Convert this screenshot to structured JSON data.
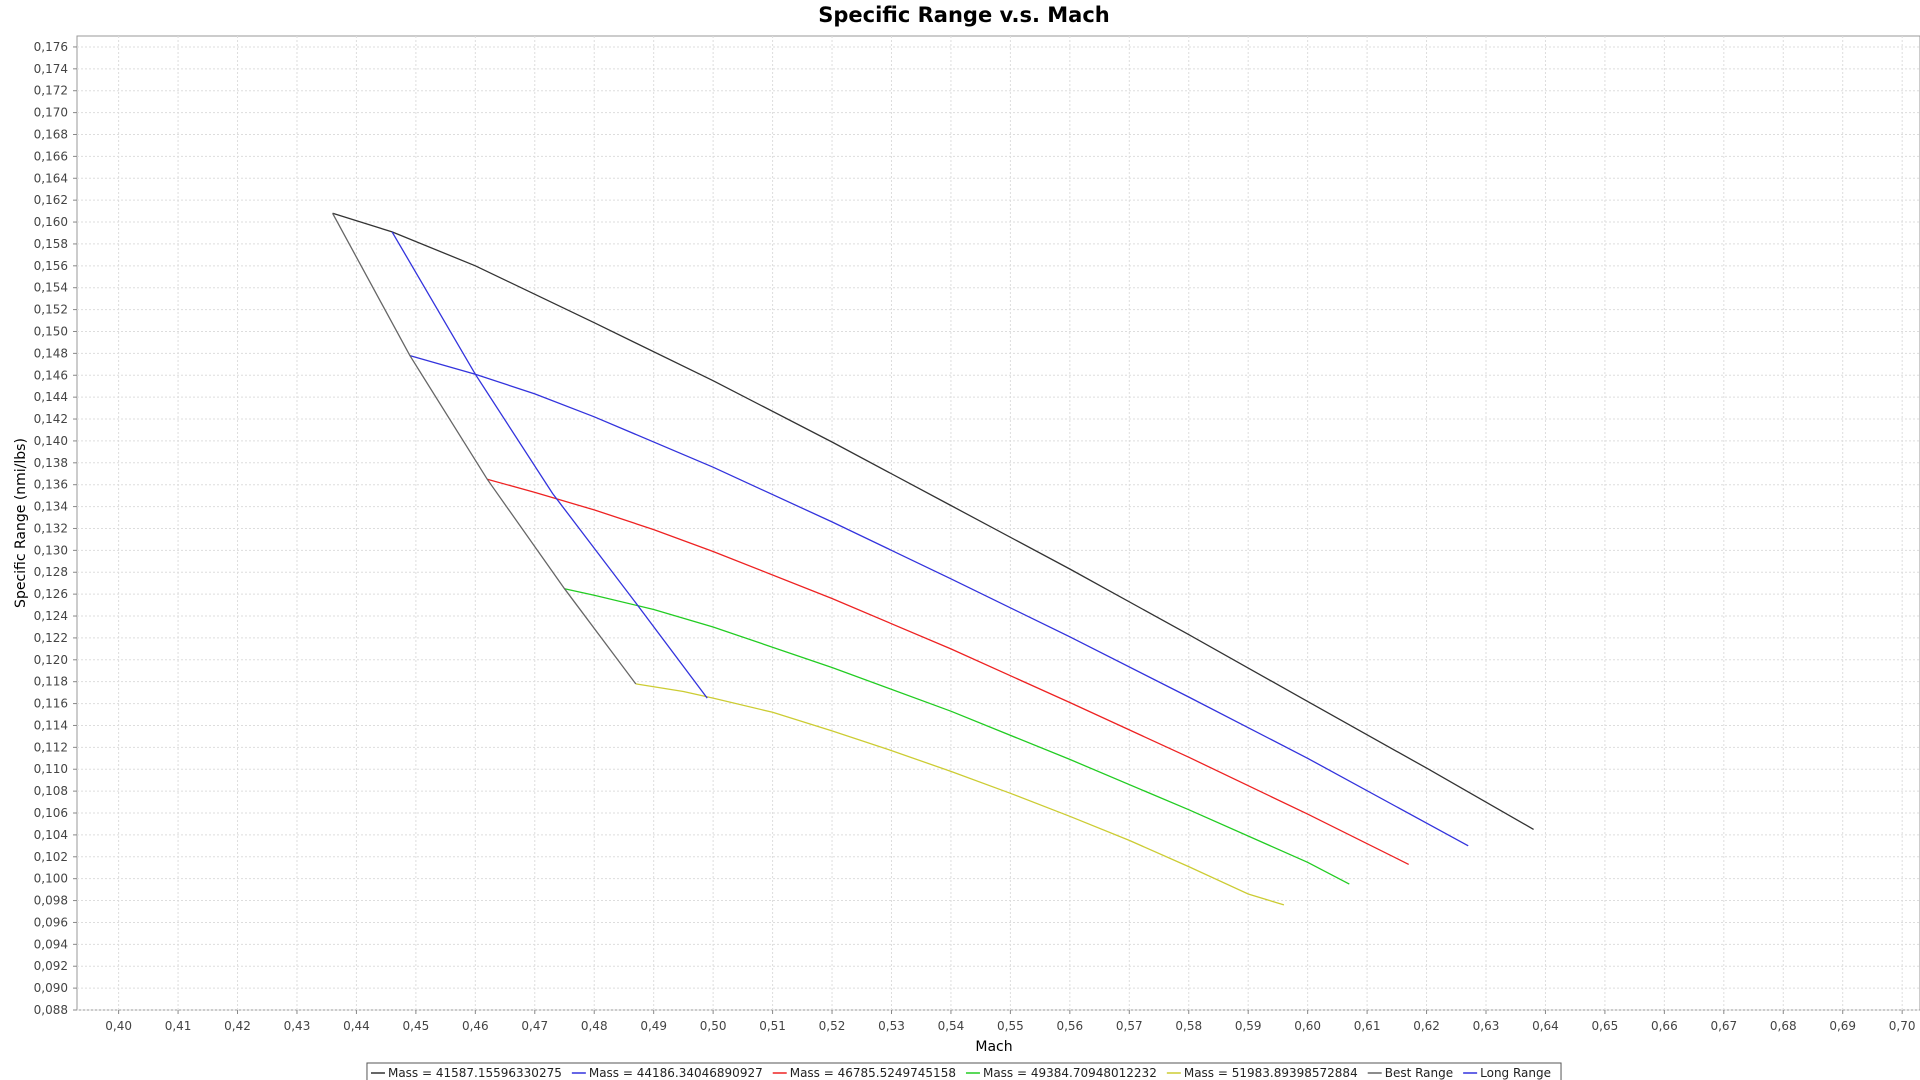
{
  "chart_data": {
    "type": "line",
    "title": "Specific Range v.s. Mach",
    "xlabel": "Mach",
    "ylabel": "Specific Range (nmi/lbs)",
    "xlim": [
      0.393,
      0.703
    ],
    "ylim": [
      0.088,
      0.177
    ],
    "x_ticks": [
      "0,40",
      "0,41",
      "0,42",
      "0,43",
      "0,44",
      "0,45",
      "0,46",
      "0,47",
      "0,48",
      "0,49",
      "0,50",
      "0,51",
      "0,52",
      "0,53",
      "0,54",
      "0,55",
      "0,56",
      "0,57",
      "0,58",
      "0,59",
      "0,60",
      "0,61",
      "0,62",
      "0,63",
      "0,64",
      "0,65",
      "0,66",
      "0,67",
      "0,68",
      "0,69",
      "0,70"
    ],
    "y_ticks": [
      "0,088",
      "0,090",
      "0,092",
      "0,094",
      "0,096",
      "0,098",
      "0,100",
      "0,102",
      "0,104",
      "0,106",
      "0,108",
      "0,110",
      "0,112",
      "0,114",
      "0,116",
      "0,118",
      "0,120",
      "0,122",
      "0,124",
      "0,126",
      "0,128",
      "0,130",
      "0,132",
      "0,134",
      "0,136",
      "0,138",
      "0,140",
      "0,142",
      "0,144",
      "0,146",
      "0,148",
      "0,150",
      "0,152",
      "0,154",
      "0,156",
      "0,158",
      "0,160",
      "0,162",
      "0,164",
      "0,166",
      "0,168",
      "0,170",
      "0,172",
      "0,174",
      "0,176"
    ],
    "grid": true,
    "legend_placement": "bottom",
    "series": [
      {
        "name": "Mass = 41587.15596330275",
        "color": "#333333",
        "x": [
          0.436,
          0.446,
          0.46,
          0.48,
          0.5,
          0.52,
          0.54,
          0.56,
          0.58,
          0.6,
          0.62,
          0.638
        ],
        "y": [
          0.1608,
          0.1591,
          0.156,
          0.1508,
          0.1455,
          0.1399,
          0.1341,
          0.1283,
          0.1223,
          0.1162,
          0.1101,
          0.1045
        ]
      },
      {
        "name": "Mass = 44186.34046890927",
        "color": "#3333dd",
        "x": [
          0.449,
          0.46,
          0.47,
          0.48,
          0.5,
          0.52,
          0.54,
          0.56,
          0.58,
          0.6,
          0.627
        ],
        "y": [
          0.1478,
          0.1461,
          0.1443,
          0.1422,
          0.1376,
          0.1326,
          0.1274,
          0.1221,
          0.1166,
          0.111,
          0.103
        ]
      },
      {
        "name": "Mass = 46785.5249745158",
        "color": "#ee2222",
        "x": [
          0.462,
          0.47,
          0.48,
          0.49,
          0.5,
          0.52,
          0.54,
          0.56,
          0.58,
          0.6,
          0.617
        ],
        "y": [
          0.1365,
          0.1353,
          0.1337,
          0.1319,
          0.1299,
          0.1256,
          0.121,
          0.1161,
          0.1111,
          0.1059,
          0.1013
        ]
      },
      {
        "name": "Mass = 49384.70948012232",
        "color": "#22cc22",
        "x": [
          0.475,
          0.48,
          0.49,
          0.5,
          0.52,
          0.54,
          0.56,
          0.58,
          0.6,
          0.607
        ],
        "y": [
          0.1265,
          0.1259,
          0.1246,
          0.123,
          0.1193,
          0.1153,
          0.1109,
          0.1063,
          0.1015,
          0.0995
        ]
      },
      {
        "name": "Mass = 51983.89398572884",
        "color": "#cccc33",
        "x": [
          0.487,
          0.495,
          0.5,
          0.51,
          0.52,
          0.53,
          0.54,
          0.55,
          0.56,
          0.57,
          0.58,
          0.59,
          0.596
        ],
        "y": [
          0.1178,
          0.1171,
          0.1165,
          0.1152,
          0.1135,
          0.1117,
          0.1098,
          0.1078,
          0.1057,
          0.1035,
          0.1011,
          0.0986,
          0.0976
        ]
      },
      {
        "name": "Best Range",
        "color": "#666666",
        "x": [
          0.436,
          0.449,
          0.462,
          0.475,
          0.487
        ],
        "y": [
          0.1608,
          0.1478,
          0.1365,
          0.1265,
          0.1178
        ]
      },
      {
        "name": "Long Range",
        "color": "#3333dd",
        "x": [
          0.446,
          0.46,
          0.473,
          0.487,
          0.499
        ],
        "y": [
          0.1591,
          0.1461,
          0.1352,
          0.1252,
          0.1165
        ]
      }
    ]
  }
}
